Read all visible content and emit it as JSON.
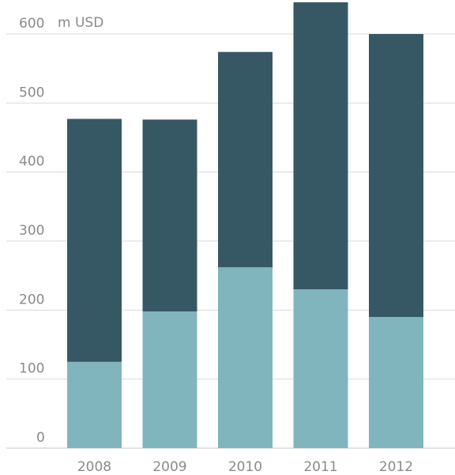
{
  "chart_data": {
    "type": "bar",
    "stacked": true,
    "unit": "m USD",
    "categories": [
      "2008",
      "2009",
      "2010",
      "2011",
      "2012"
    ],
    "series": [
      {
        "values": [
          125,
          198,
          262,
          230,
          190
        ],
        "color": "#80b5bd"
      },
      {
        "values": [
          352,
          278,
          312,
          416,
          410
        ],
        "color": "#365864"
      }
    ],
    "y_ticks": [
      0,
      100,
      200,
      300,
      400,
      500,
      600
    ],
    "ylim": [
      0,
      650
    ],
    "grid": true,
    "legend": "none"
  }
}
